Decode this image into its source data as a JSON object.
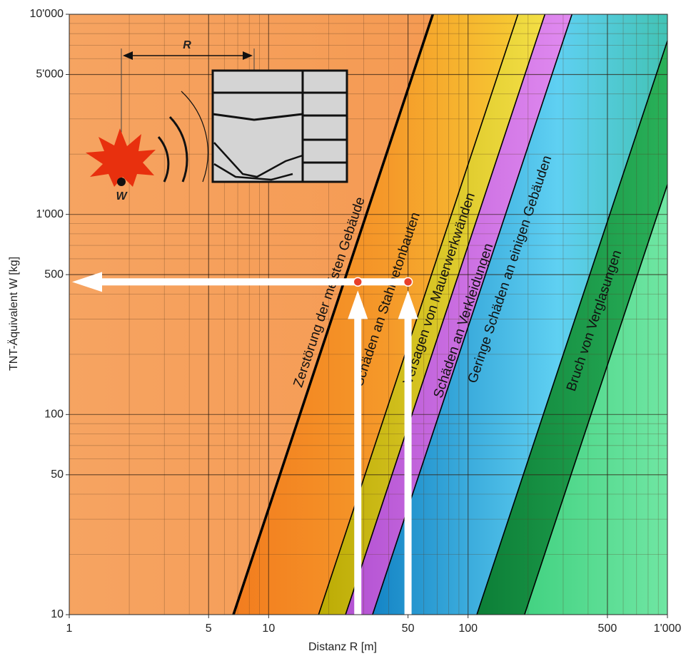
{
  "chart_data": {
    "type": "line",
    "xlabel": "Distanz R [m]",
    "ylabel": "TNT-Äquivalent W [kg]",
    "xscale": "log",
    "yscale": "log",
    "xlim": [
      1,
      1000
    ],
    "ylim": [
      10,
      10000
    ],
    "xticks": [
      1,
      5,
      10,
      50,
      100,
      500,
      {
        "value": 1000,
        "label": "1'000"
      }
    ],
    "yticks": [
      10,
      50,
      100,
      500,
      {
        "value": 1000,
        "label": "1'000"
      },
      {
        "value": 5000,
        "label": "5'000"
      },
      {
        "value": 10000,
        "label": "10'000"
      }
    ],
    "grid": true,
    "minor_grid": true,
    "series": [
      {
        "color": "#000000",
        "x": [
          6.66,
          66.6
        ],
        "values": [
          10,
          10000
        ]
      },
      {
        "color": "#000000",
        "x": [
          17.8,
          178
        ],
        "values": [
          10,
          10000
        ]
      },
      {
        "color": "#000000",
        "x": [
          24.3,
          243
        ],
        "values": [
          10,
          10000
        ]
      },
      {
        "color": "#000000",
        "x": [
          33.2,
          332
        ],
        "values": [
          10,
          10000
        ]
      },
      {
        "color": "#000000",
        "x": [
          110.7,
          1000
        ],
        "values": [
          10,
          7370
        ]
      },
      {
        "color": "#000000",
        "x": [
          192,
          1000
        ],
        "values": [
          10,
          1410
        ]
      }
    ],
    "points": {
      "color": "#e8402a",
      "x": [
        28,
        50
      ],
      "values": [
        460,
        460
      ]
    },
    "annotations": [
      "Zerstörung der meisten Gebäude",
      "Schäden an Stahlbetonbauten",
      "Versagen von Mauerwerkwänden",
      "Schäden an Verkleidungen",
      "Geringe Schäden an einigen Gebäuden",
      "Bruch von Verglasungen"
    ],
    "inset": {
      "distance_label": "R",
      "charge_label": "W"
    }
  }
}
